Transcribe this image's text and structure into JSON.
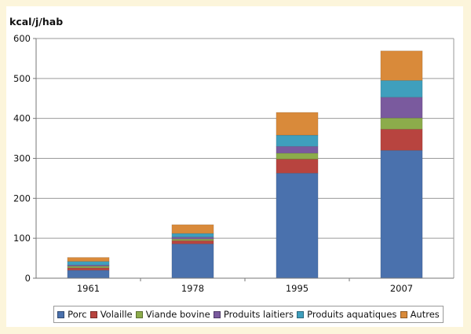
{
  "chart_data": {
    "type": "bar",
    "stacked": true,
    "ylabel": "kcal/j/hab",
    "ylim": [
      0,
      600
    ],
    "yticks": [
      0,
      100,
      200,
      300,
      400,
      500,
      600
    ],
    "grid": true,
    "legend_position": "bottom",
    "categories": [
      "1961",
      "1978",
      "1995",
      "2007"
    ],
    "series": [
      {
        "name": "Porc",
        "color": "#4a71ad",
        "values": [
          20,
          86,
          263,
          320
        ]
      },
      {
        "name": "Volaille",
        "color": "#b8443f",
        "values": [
          6,
          8,
          35,
          53
        ]
      },
      {
        "name": "Viande bovine",
        "color": "#8cac4b",
        "values": [
          4,
          4,
          15,
          28
        ]
      },
      {
        "name": "Produits laitiers",
        "color": "#7a5a9e",
        "values": [
          3,
          5,
          17,
          52
        ]
      },
      {
        "name": "Produits aquatiques",
        "color": "#3f9fbd",
        "values": [
          9,
          9,
          28,
          42
        ]
      },
      {
        "name": "Autres",
        "color": "#d98a3a",
        "values": [
          10,
          22,
          57,
          74
        ]
      }
    ]
  }
}
